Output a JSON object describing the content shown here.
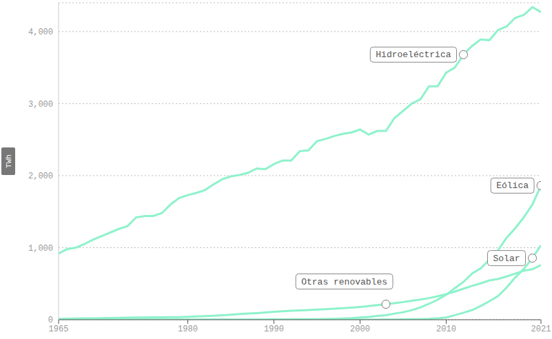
{
  "chart_data": {
    "type": "line",
    "ylabel": "TWh",
    "x": [
      1965,
      1966,
      1967,
      1968,
      1969,
      1970,
      1971,
      1972,
      1973,
      1974,
      1975,
      1976,
      1977,
      1978,
      1979,
      1980,
      1981,
      1982,
      1983,
      1984,
      1985,
      1986,
      1987,
      1988,
      1989,
      1990,
      1991,
      1992,
      1993,
      1994,
      1995,
      1996,
      1997,
      1998,
      1999,
      2000,
      2001,
      2002,
      2003,
      2004,
      2005,
      2006,
      2007,
      2008,
      2009,
      2010,
      2011,
      2012,
      2013,
      2014,
      2015,
      2016,
      2017,
      2018,
      2019,
      2020,
      2021
    ],
    "series": [
      {
        "name": "Hidroeléctrica",
        "color": "#8ef2cb",
        "values": [
          920,
          980,
          1000,
          1050,
          1110,
          1160,
          1210,
          1260,
          1300,
          1420,
          1440,
          1440,
          1480,
          1600,
          1690,
          1730,
          1760,
          1800,
          1880,
          1950,
          1990,
          2010,
          2040,
          2100,
          2090,
          2160,
          2210,
          2210,
          2340,
          2350,
          2480,
          2510,
          2550,
          2580,
          2600,
          2640,
          2570,
          2620,
          2620,
          2800,
          2900,
          3000,
          3060,
          3240,
          3240,
          3430,
          3500,
          3680,
          3800,
          3890,
          3880,
          4020,
          4070,
          4190,
          4230,
          4340,
          4270
        ]
      },
      {
        "name": "Eólica",
        "color": "#8ef2cb",
        "values": [
          0,
          0,
          0,
          0,
          0,
          0,
          0,
          0,
          0,
          0,
          0,
          0,
          0,
          0,
          0,
          0,
          0,
          0,
          0,
          0,
          1,
          1,
          2,
          3,
          3,
          4,
          5,
          5,
          6,
          7,
          8,
          10,
          12,
          16,
          21,
          31,
          38,
          52,
          63,
          85,
          104,
          133,
          171,
          220,
          277,
          346,
          437,
          524,
          641,
          712,
          832,
          961,
          1137,
          1267,
          1420,
          1598,
          1862
        ]
      },
      {
        "name": "Solar",
        "color": "#8ef2cb",
        "values": [
          0,
          0,
          0,
          0,
          0,
          0,
          0,
          0,
          0,
          0,
          0,
          0,
          0,
          0,
          0,
          0,
          0,
          0,
          0,
          0,
          0,
          0,
          0,
          0,
          0,
          0,
          0,
          0,
          0,
          0,
          0,
          0,
          0,
          0,
          0,
          1,
          1,
          1,
          2,
          3,
          4,
          6,
          8,
          12,
          20,
          32,
          63,
          97,
          134,
          190,
          256,
          328,
          444,
          585,
          704,
          855,
          1033
        ]
      },
      {
        "name": "Otras renovables",
        "color": "#8ef2cb",
        "values": [
          12,
          14,
          16,
          18,
          20,
          22,
          24,
          26,
          28,
          30,
          32,
          33,
          34,
          35,
          37,
          40,
          45,
          50,
          55,
          62,
          70,
          78,
          85,
          92,
          100,
          110,
          118,
          125,
          130,
          135,
          140,
          145,
          152,
          160,
          168,
          178,
          190,
          203,
          215,
          230,
          245,
          262,
          280,
          300,
          325,
          355,
          390,
          430,
          470,
          505,
          545,
          565,
          600,
          640,
          680,
          700,
          760
        ]
      }
    ],
    "xlim": [
      1965,
      2021
    ],
    "xticks": [
      1965,
      1980,
      1990,
      2000,
      2010,
      2021
    ],
    "ylim": [
      0,
      4400
    ],
    "yticks": [
      0,
      {
        "value": 1000,
        "label": "1,000"
      },
      {
        "value": 2000,
        "label": "2,000"
      },
      {
        "value": 3000,
        "label": "3,000"
      },
      {
        "value": 4000,
        "label": "4,000"
      }
    ],
    "grid": true
  }
}
